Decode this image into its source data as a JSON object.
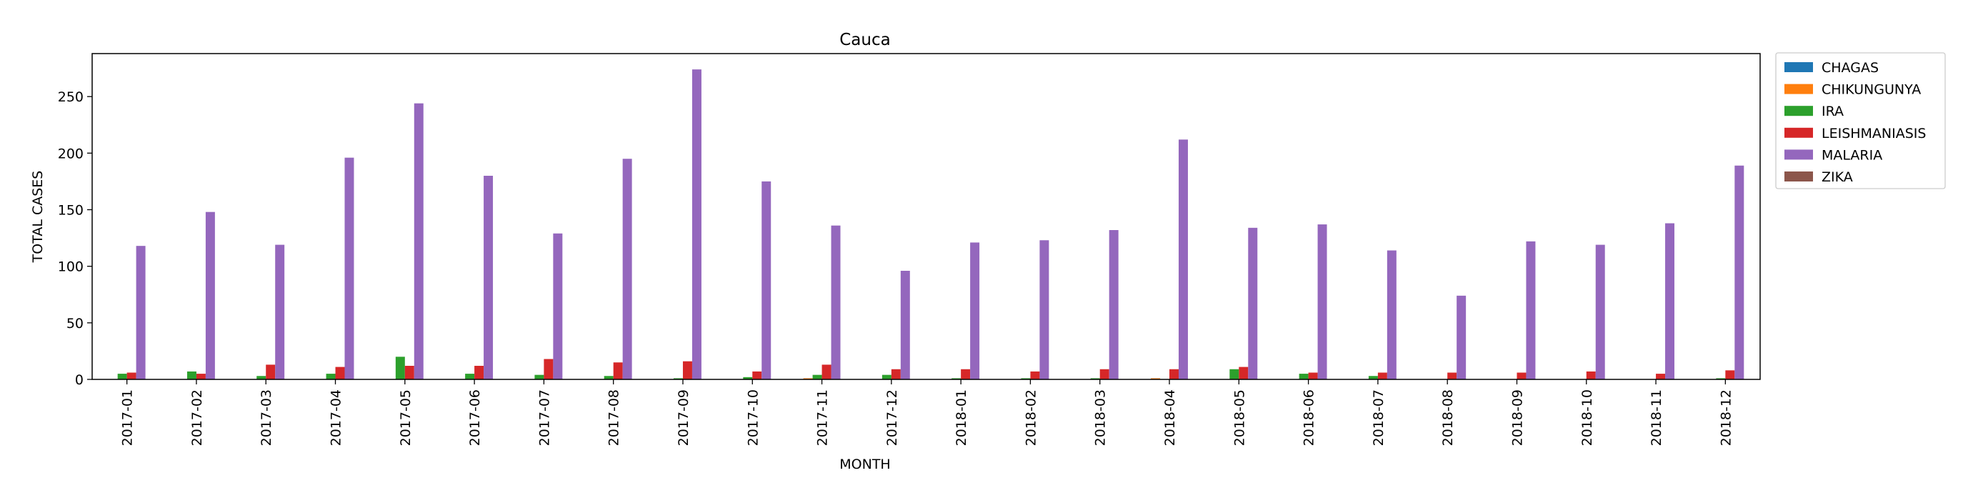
{
  "chart_data": {
    "type": "bar",
    "title": "Cauca",
    "xlabel": "MONTH",
    "ylabel": "TOTAL CASES",
    "ylim": [
      0,
      288
    ],
    "yticks": [
      0,
      50,
      100,
      150,
      200,
      250
    ],
    "legend_position": "outside upper right",
    "categories": [
      "2017-01",
      "2017-02",
      "2017-03",
      "2017-04",
      "2017-05",
      "2017-06",
      "2017-07",
      "2017-08",
      "2017-09",
      "2017-10",
      "2017-11",
      "2017-12",
      "2018-01",
      "2018-02",
      "2018-03",
      "2018-04",
      "2018-05",
      "2018-06",
      "2018-07",
      "2018-08",
      "2018-09",
      "2018-10",
      "2018-11",
      "2018-12"
    ],
    "series": [
      {
        "name": "CHAGAS",
        "color": "#1f77b4",
        "values": [
          0,
          0,
          0,
          0,
          0,
          0,
          0,
          0,
          0,
          0,
          0,
          0,
          0,
          0,
          0,
          0,
          0,
          0,
          0,
          0,
          0,
          0,
          0,
          0
        ]
      },
      {
        "name": "CHIKUNGUNYA",
        "color": "#ff7f0e",
        "values": [
          0,
          0,
          0,
          0,
          0,
          0,
          0,
          0,
          0,
          0,
          1,
          0,
          0,
          0,
          0,
          1,
          0,
          0,
          0,
          0,
          0,
          0,
          0,
          0
        ]
      },
      {
        "name": "IRA",
        "color": "#2ca02c",
        "values": [
          5,
          7,
          3,
          5,
          20,
          5,
          4,
          3,
          1,
          2,
          4,
          4,
          1,
          1,
          1,
          0,
          9,
          5,
          3,
          0,
          0,
          0,
          0,
          1
        ]
      },
      {
        "name": "LEISHMANIASIS",
        "color": "#d62728",
        "values": [
          6,
          5,
          13,
          11,
          12,
          12,
          18,
          15,
          16,
          7,
          13,
          9,
          9,
          7,
          9,
          9,
          11,
          6,
          6,
          6,
          6,
          7,
          5,
          8
        ]
      },
      {
        "name": "MALARIA",
        "color": "#9467bd",
        "values": [
          118,
          148,
          119,
          196,
          244,
          180,
          129,
          195,
          274,
          175,
          136,
          96,
          121,
          123,
          132,
          212,
          134,
          137,
          114,
          74,
          122,
          119,
          138,
          189
        ]
      },
      {
        "name": "ZIKA",
        "color": "#8c564b",
        "values": [
          0,
          0,
          0,
          0,
          0,
          0,
          0,
          0,
          0,
          0,
          0,
          0,
          0,
          0,
          0,
          0,
          0,
          0,
          0,
          0,
          0,
          0,
          0,
          0
        ]
      }
    ]
  }
}
